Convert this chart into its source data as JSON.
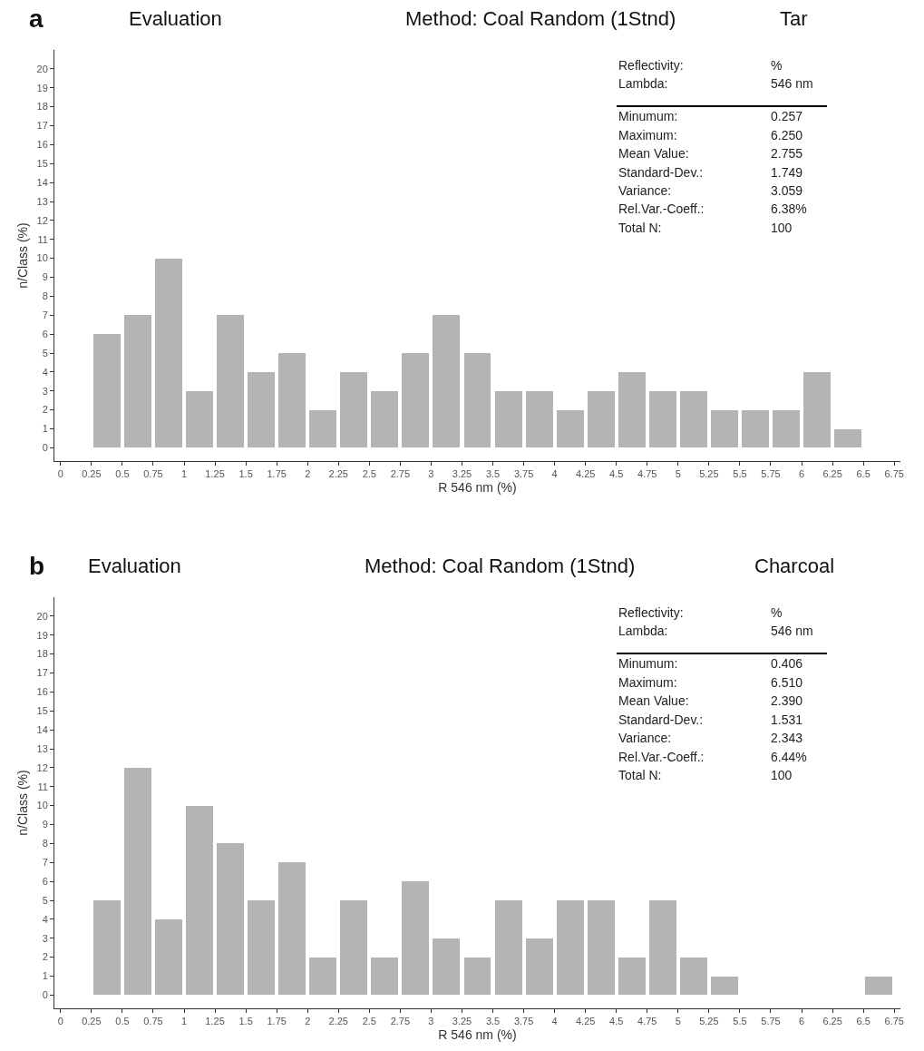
{
  "chart_data": [
    {
      "type": "histogram",
      "title": "Evaluation",
      "subtitle": "Method: Coal Random (1Stnd)",
      "xlabel": "R 546 nm (%)",
      "ylabel": "n/Class (%)",
      "color": "#b3b3b3",
      "bins": [
        0.25,
        0.5,
        0.75,
        1,
        1.25,
        1.5,
        1.75,
        2,
        2.25,
        2.5,
        2.75,
        3,
        3.25,
        3.5,
        3.75,
        4,
        4.25,
        4.5,
        4.75,
        5,
        5.25,
        5.5,
        5.75,
        6,
        6.25,
        6.5
      ],
      "values": [
        6,
        7,
        10,
        3,
        7,
        4,
        5,
        2,
        4,
        3,
        5,
        7,
        5,
        3,
        3,
        2,
        3,
        4,
        3,
        3,
        2,
        2,
        2,
        4,
        1
      ],
      "xlim": [
        -0.05,
        6.8
      ],
      "ylim": [
        -0.7,
        21
      ],
      "xticks": [
        0,
        0.25,
        0.5,
        0.75,
        1,
        1.25,
        1.5,
        1.75,
        2,
        2.25,
        2.5,
        2.75,
        3,
        3.25,
        3.5,
        3.75,
        4,
        4.25,
        4.5,
        4.75,
        5,
        5.25,
        5.5,
        5.75,
        6,
        6.25,
        6.5,
        6.75
      ],
      "yticks": [
        0,
        1,
        2,
        3,
        4,
        5,
        6,
        7,
        8,
        9,
        10,
        11,
        12,
        13,
        14,
        15,
        16,
        17,
        18,
        19,
        20
      ],
      "grid": false,
      "annotations": [
        "a",
        "Tar",
        "Reflectivity:",
        "%",
        "Lambda:",
        "546 nm",
        "Minumum:",
        "0.257",
        "Maximum:",
        "6.250",
        "Mean Value:",
        "2.755",
        "Standard-Dev.:",
        "1.749",
        "Variance:",
        "3.059",
        "Rel.Var.-Coeff.:",
        "6.38%",
        "Total N:",
        "100"
      ]
    },
    {
      "type": "histogram",
      "title": "Evaluation",
      "subtitle": "Method: Coal Random (1Stnd)",
      "xlabel": "R 546 nm (%)",
      "ylabel": "n/Class (%)",
      "color": "#b3b3b3",
      "bins": [
        0.25,
        0.5,
        0.75,
        1,
        1.25,
        1.5,
        1.75,
        2,
        2.25,
        2.5,
        2.75,
        3,
        3.25,
        3.5,
        3.75,
        4,
        4.25,
        4.5,
        4.75,
        5,
        5.25,
        5.5,
        5.75,
        6,
        6.25,
        6.5,
        6.75
      ],
      "values": [
        5,
        12,
        4,
        10,
        8,
        5,
        7,
        2,
        5,
        2,
        6,
        3,
        2,
        5,
        3,
        5,
        5,
        2,
        5,
        2,
        1,
        0,
        0,
        0,
        0,
        1
      ],
      "xlim": [
        -0.05,
        6.8
      ],
      "ylim": [
        -0.7,
        21
      ],
      "xticks": [
        0,
        0.25,
        0.5,
        0.75,
        1,
        1.25,
        1.5,
        1.75,
        2,
        2.25,
        2.5,
        2.75,
        3,
        3.25,
        3.5,
        3.75,
        4,
        4.25,
        4.5,
        4.75,
        5,
        5.25,
        5.5,
        5.75,
        6,
        6.25,
        6.5,
        6.75
      ],
      "yticks": [
        0,
        1,
        2,
        3,
        4,
        5,
        6,
        7,
        8,
        9,
        10,
        11,
        12,
        13,
        14,
        15,
        16,
        17,
        18,
        19,
        20
      ],
      "grid": false,
      "annotations": [
        "b",
        "Charcoal",
        "Reflectivity:",
        "%",
        "Lambda:",
        "546 nm",
        "Minumum:",
        "0.406",
        "Maximum:",
        "6.510",
        "Mean Value:",
        "2.390",
        "Standard-Dev.:",
        "1.531",
        "Variance:",
        "2.343",
        "Rel.Var.-Coeff.:",
        "6.44%",
        "Total N:",
        "100"
      ]
    }
  ]
}
